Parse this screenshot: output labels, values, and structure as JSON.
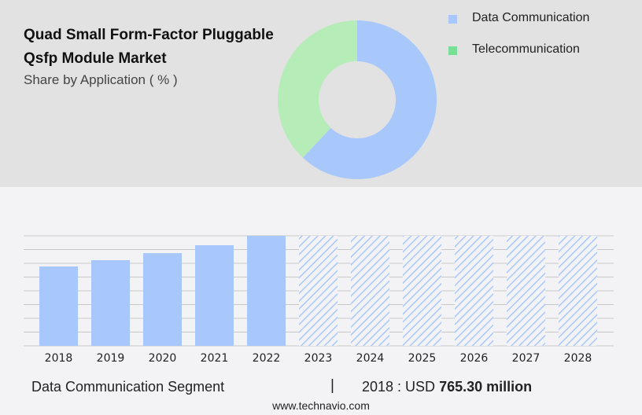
{
  "title": "Quad Small Form-Factor Pluggable Qsfp Module Market",
  "subtitle": "Share by Application ( % )",
  "colors": {
    "data_communication": "#a8c8fc",
    "telecommunication": "#b5ecb8",
    "telecom_legend": "#77e096",
    "hatch": "#a8c8fc"
  },
  "chart_data": [
    {
      "type": "pie",
      "subtype": "donut",
      "legend_placement": "top-right",
      "slices": [
        {
          "name": "Data Communication",
          "value": 62
        },
        {
          "name": "Telecommunication",
          "value": 38
        }
      ]
    },
    {
      "type": "bar",
      "categories": [
        "2018",
        "2019",
        "2020",
        "2021",
        "2022",
        "2023",
        "2024",
        "2025",
        "2026",
        "2027",
        "2028"
      ],
      "values": [
        765.3,
        826,
        894,
        970,
        1061,
        null,
        null,
        null,
        null,
        null,
        null
      ],
      "forecast_categories": [
        "2023",
        "2024",
        "2025",
        "2026",
        "2027",
        "2028"
      ],
      "grid": true
    }
  ],
  "footer": {
    "segment": "Data Communication Segment",
    "separator": "|",
    "year_label": "2018 : USD ",
    "value": "765.30 million",
    "site": "www.technavio.com"
  }
}
